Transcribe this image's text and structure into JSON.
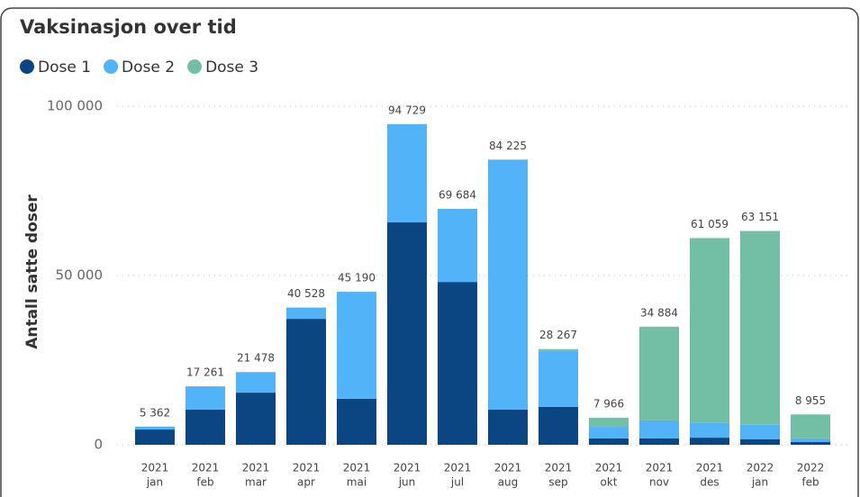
{
  "chart_data": {
    "type": "stacked-bar",
    "title": "Vaksinasjon over tid",
    "y_label": "Antall satte doser",
    "categories": [
      [
        "2021",
        "jan"
      ],
      [
        "2021",
        "feb"
      ],
      [
        "2021",
        "mar"
      ],
      [
        "2021",
        "apr"
      ],
      [
        "2021",
        "mai"
      ],
      [
        "2021",
        "jun"
      ],
      [
        "2021",
        "jul"
      ],
      [
        "2021",
        "aug"
      ],
      [
        "2021",
        "sep"
      ],
      [
        "2021",
        "okt"
      ],
      [
        "2021",
        "nov"
      ],
      [
        "2021",
        "des"
      ],
      [
        "2022",
        "jan"
      ],
      [
        "2022",
        "feb"
      ]
    ],
    "series": [
      {
        "name": "Dose 1",
        "color": "#0b4582",
        "values": [
          4500,
          10400,
          15400,
          37200,
          13600,
          65700,
          48100,
          10400,
          11200,
          1900,
          1900,
          2100,
          1600,
          800
        ]
      },
      {
        "name": "Dose 2",
        "color": "#52b3f8",
        "values": [
          862,
          6861,
          6078,
          3328,
          31590,
          29029,
          21584,
          73825,
          16500,
          3400,
          5300,
          4300,
          4300,
          1100
        ]
      },
      {
        "name": "Dose 3",
        "color": "#72bfa6",
        "values": [
          0,
          0,
          0,
          0,
          0,
          0,
          0,
          0,
          567,
          2666,
          27684,
          54659,
          57251,
          7055
        ]
      }
    ],
    "totals": {
      "values": [
        5362,
        17261,
        21478,
        40528,
        45190,
        94729,
        69684,
        84225,
        28267,
        7966,
        34884,
        61059,
        63151,
        8955
      ],
      "value_labels": [
        "5 362",
        "17 261",
        "21 478",
        "40 528",
        "45 190",
        "94 729",
        "69 684",
        "84 225",
        "28 267",
        "7 966",
        "34 884",
        "61 059",
        "63 151",
        "8 955"
      ]
    },
    "ylim": [
      0,
      100000
    ],
    "yticks": [
      0,
      {
        "value": 50000,
        "label": "50 000"
      },
      {
        "value": 100000,
        "label": "100 000"
      }
    ],
    "grid": true
  }
}
